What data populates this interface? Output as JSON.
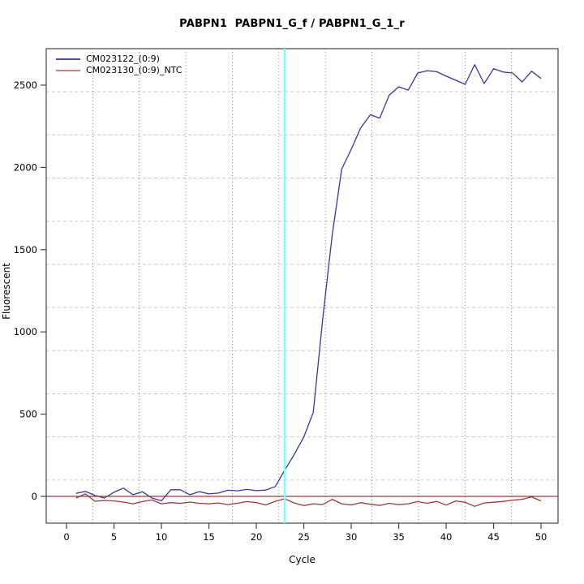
{
  "chart_data": {
    "type": "line",
    "title": "PABPN1  PABPN1_G_f / PABPN1_G_1_r",
    "xlabel": "Cycle",
    "ylabel": "Fluorescent",
    "x_ticks": [
      0,
      5,
      10,
      15,
      20,
      25,
      30,
      35,
      40,
      45,
      50
    ],
    "y_ticks": [
      0,
      500,
      1000,
      1500,
      2000,
      2500
    ],
    "xlim": [
      -2.14,
      51.79
    ],
    "ylim": [
      -163,
      2722
    ],
    "grid": {
      "divisions": 11,
      "vertical_style": "dotted",
      "horizontal_style": "dashed",
      "vertical_color": "#858585",
      "horizontal_color": "#cacaca"
    },
    "threshold_line": {
      "y": 0,
      "color": "#8b2626"
    },
    "ct_marker_line": {
      "x": 23,
      "color": "#7dffff"
    },
    "axis_color": "#424242",
    "legend_position": "top-left",
    "x": [
      1,
      2,
      3,
      4,
      5,
      6,
      7,
      8,
      9,
      10,
      11,
      12,
      13,
      14,
      15,
      16,
      17,
      18,
      19,
      20,
      21,
      22,
      23,
      24,
      25,
      26,
      27,
      28,
      29,
      30,
      31,
      32,
      33,
      34,
      35,
      36,
      37,
      38,
      39,
      40,
      41,
      42,
      43,
      44,
      45,
      46,
      47,
      48,
      49,
      50
    ],
    "series": [
      {
        "name": "CM023122_(0:9)",
        "color": "#3737a4",
        "legend_color": "#4a4aae",
        "values": [
          18,
          30,
          5,
          -10,
          25,
          50,
          10,
          28,
          -10,
          -27,
          40,
          40,
          10,
          29,
          15,
          20,
          37,
          34,
          42,
          35,
          38,
          60,
          160,
          255,
          360,
          510,
          1080,
          1590,
          1990,
          2110,
          2240,
          2320,
          2300,
          2440,
          2490,
          2470,
          2574,
          2588,
          2582,
          2555,
          2530,
          2505,
          2625,
          2510,
          2600,
          2580,
          2574,
          2520,
          2585,
          2541
        ]
      },
      {
        "name": "CM023130_(0:9)_NTC",
        "color": "#9c3838",
        "legend_color": "#cc7f7f",
        "values": [
          -10,
          15,
          -30,
          -25,
          -28,
          -35,
          -45,
          -32,
          -22,
          -45,
          -38,
          -42,
          -35,
          -42,
          -45,
          -40,
          -50,
          -42,
          -32,
          -38,
          -52,
          -30,
          -15,
          -40,
          -56,
          -45,
          -50,
          -18,
          -45,
          -52,
          -38,
          -48,
          -55,
          -42,
          -50,
          -45,
          -32,
          -42,
          -31,
          -53,
          -28,
          -36,
          -61,
          -40,
          -36,
          -31,
          -23,
          -18,
          -3,
          -28
        ]
      }
    ]
  }
}
